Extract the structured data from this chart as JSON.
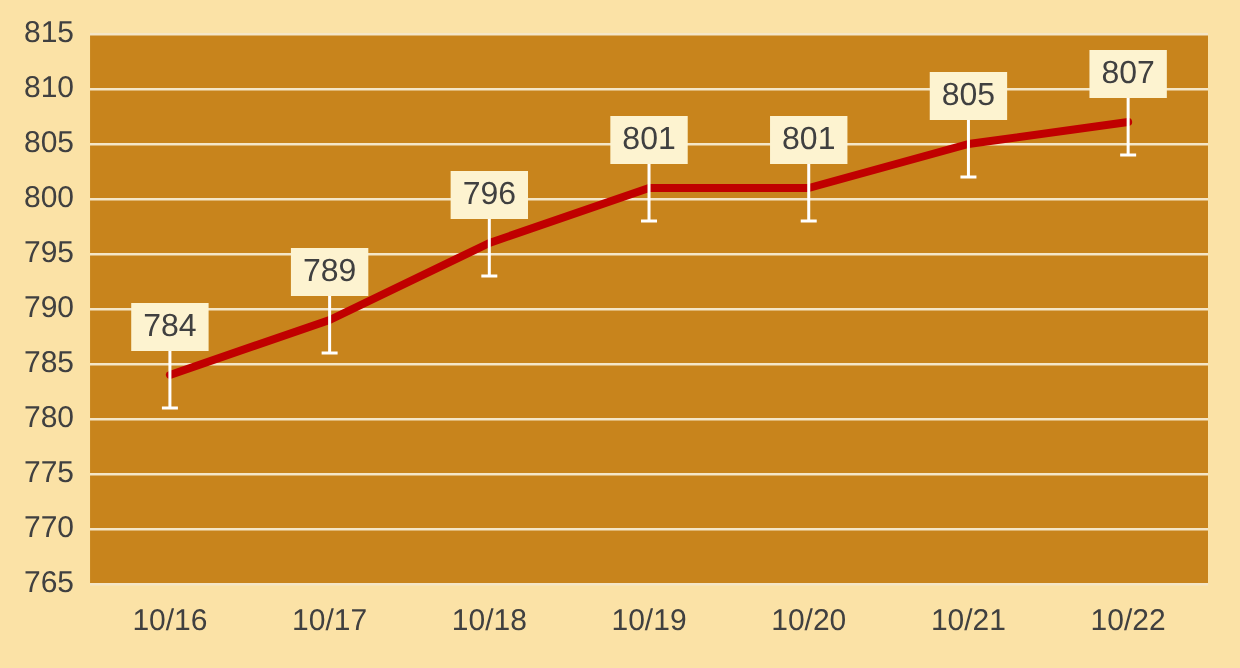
{
  "chart_data": {
    "type": "line",
    "categories": [
      "10/16",
      "10/17",
      "10/18",
      "10/19",
      "10/20",
      "10/21",
      "10/22"
    ],
    "series": [
      {
        "color": "#c00000",
        "values": [
          784,
          789,
          796,
          801,
          801,
          805,
          807
        ],
        "errors": [
          3,
          3,
          3,
          3,
          3,
          3,
          3
        ]
      }
    ],
    "ylim": [
      765,
      815
    ],
    "yticks": [
      765,
      770,
      775,
      780,
      785,
      790,
      795,
      800,
      805,
      810,
      815
    ],
    "grid": "y",
    "data_labels": true,
    "legend": false,
    "marker": "none",
    "line_style": "solid"
  }
}
